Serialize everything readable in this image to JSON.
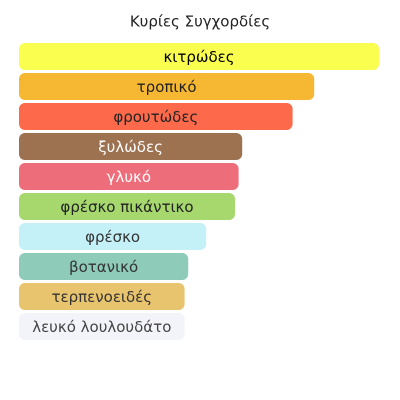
{
  "chart_data": {
    "type": "hbar",
    "title": "Κυρίες Συγχορδίες",
    "categories": [
      "κιτρώδες",
      "τροπικό",
      "φρουτώδες",
      "ξυλώδες",
      "γλυκό",
      "φρέσκο πικάντικο",
      "φρέσκο",
      "βοτανικό",
      "τερπενοειδές",
      "λευκό λουλουδάτο"
    ],
    "values": [
      100,
      82,
      76,
      62,
      61,
      60,
      52,
      47,
      46,
      46
    ],
    "colors": [
      "#f9fe4f",
      "#f6b832",
      "#fc6a4b",
      "#9d7251",
      "#ee6d7a",
      "#a6d86e",
      "#c4f0f7",
      "#8ecbb9",
      "#e8c46e",
      "#f3f3fa"
    ],
    "label_colors": [
      "#000000",
      "#222222",
      "#222222",
      "#ffffff",
      "#ffffff",
      "#222222",
      "#333333",
      "#333333",
      "#333333",
      "#444444"
    ]
  }
}
